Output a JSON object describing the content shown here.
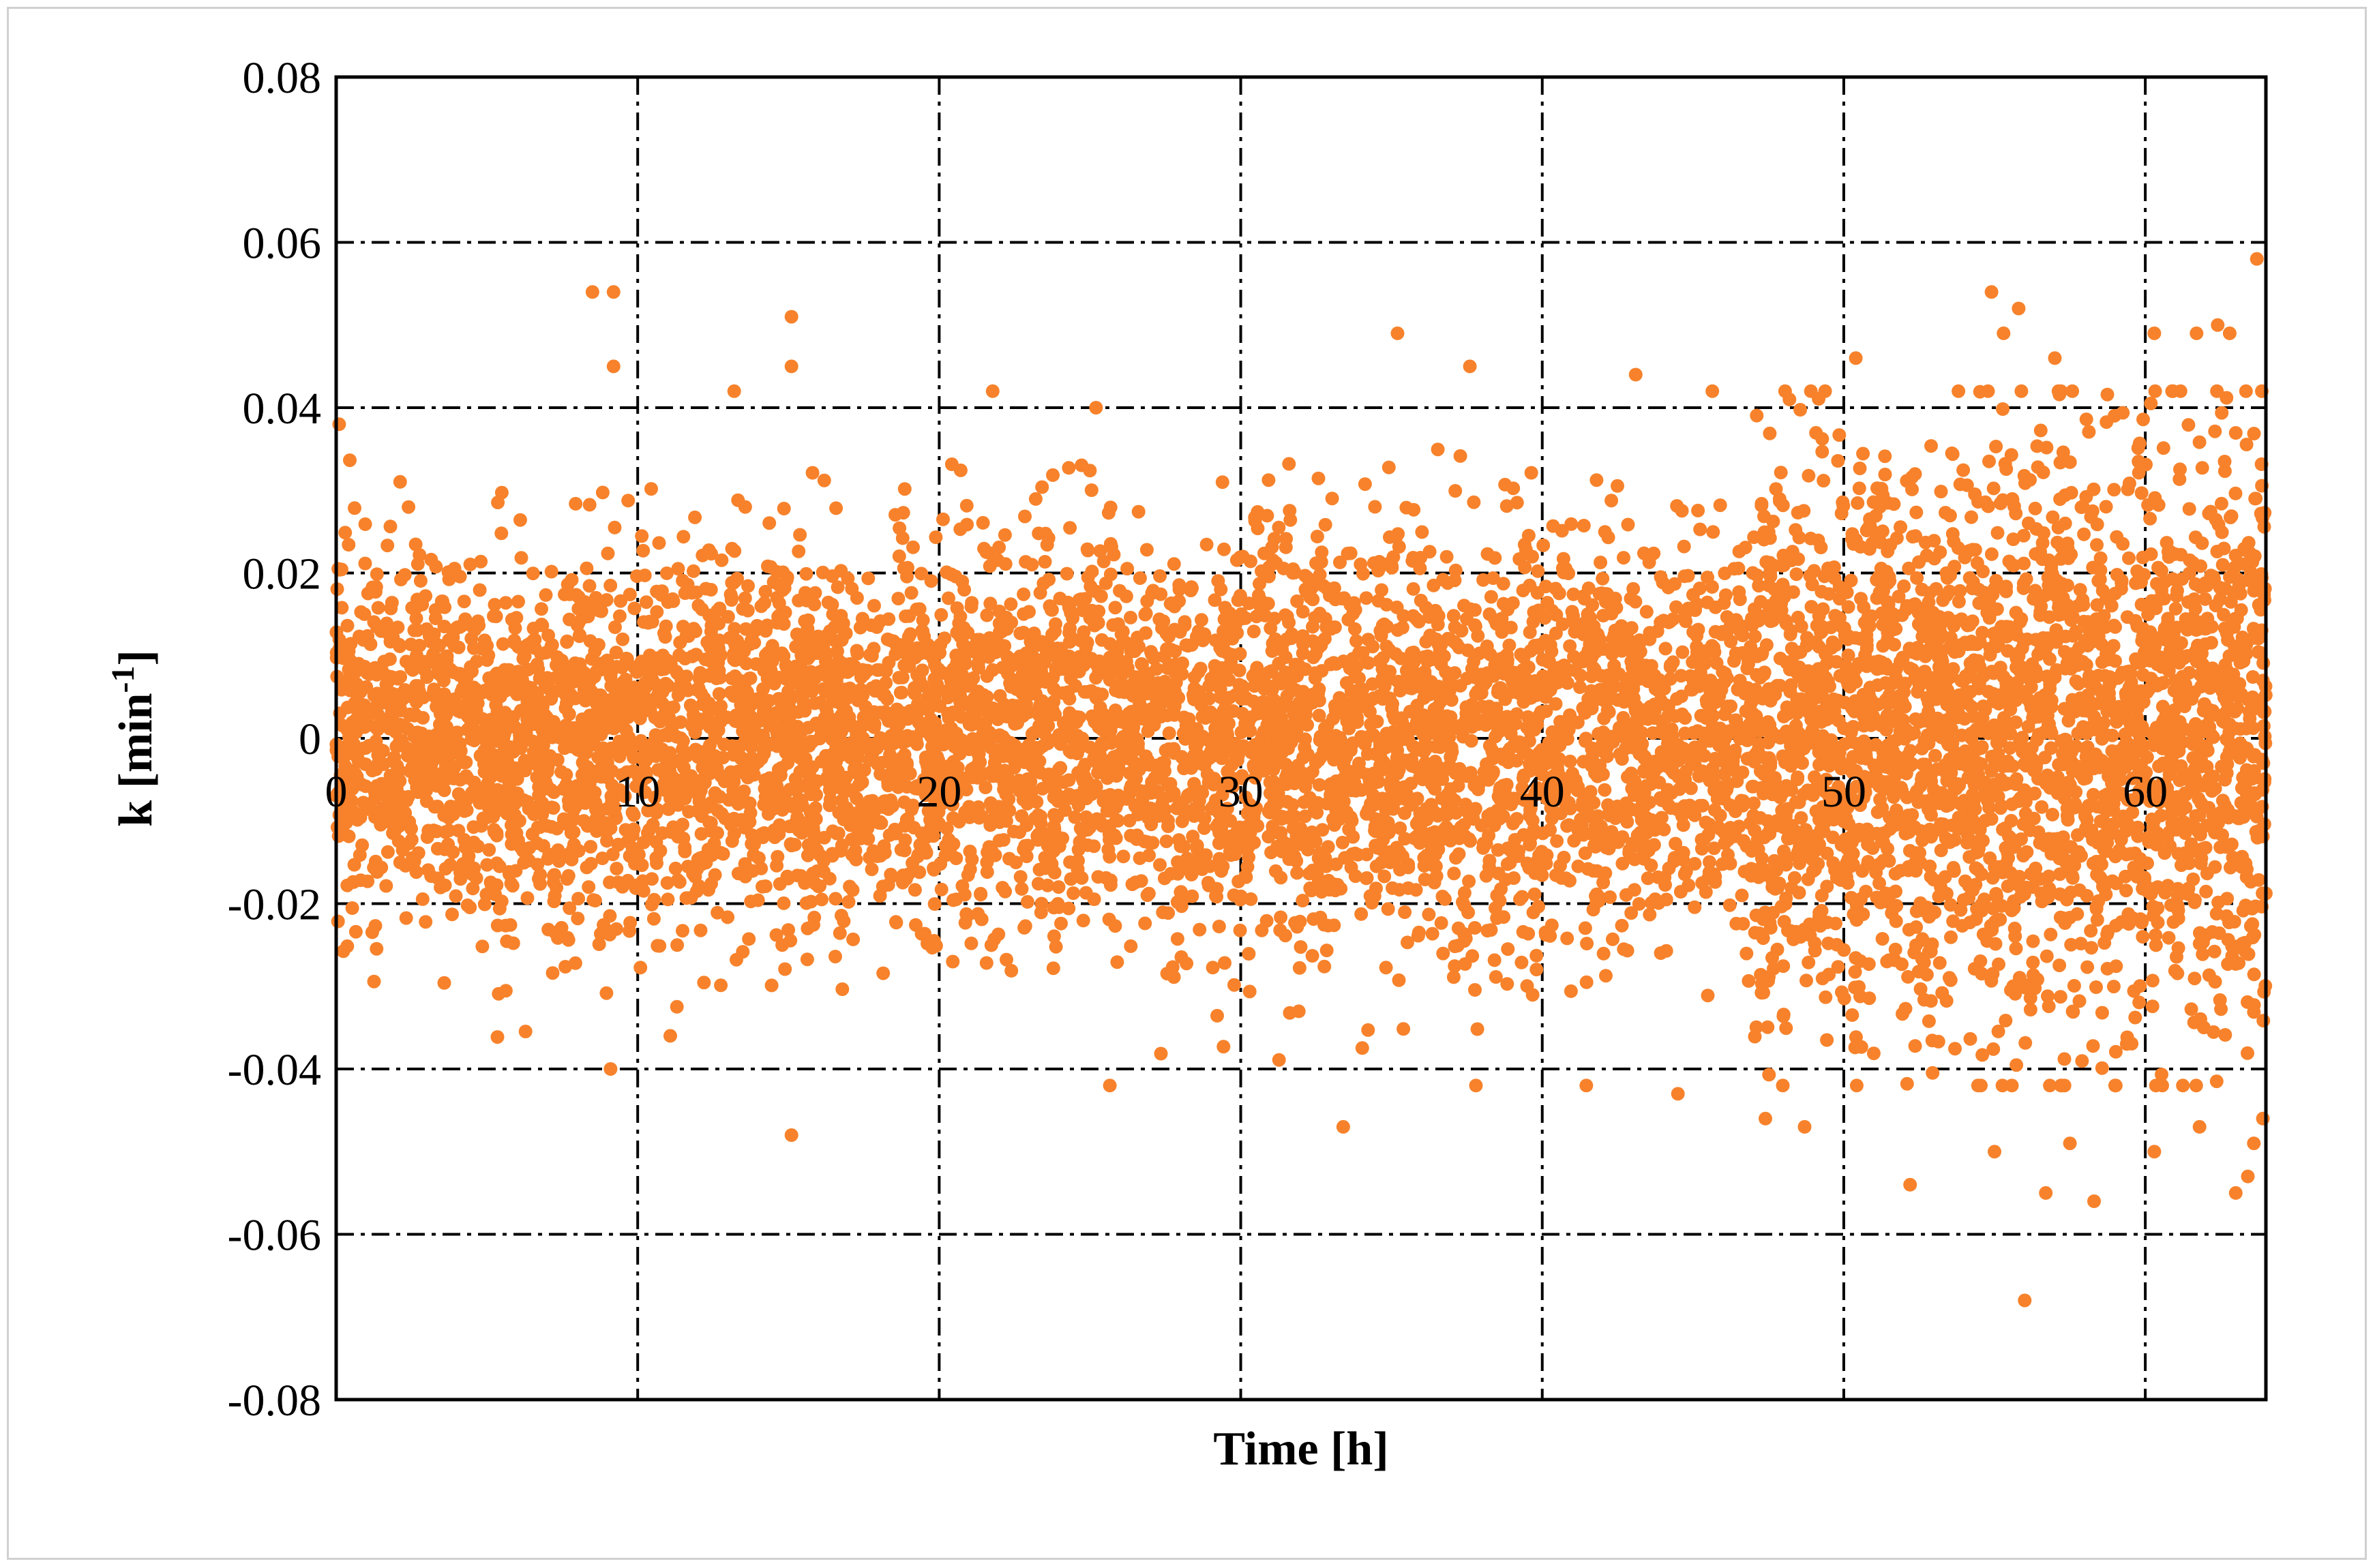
{
  "chart_data": {
    "type": "scatter",
    "xlabel": "Time [h]",
    "ylabel_base": "k [min",
    "ylabel_sup": "-1",
    "ylabel_end": "]",
    "xlim": [
      0,
      64
    ],
    "ylim": [
      -0.08,
      0.08
    ],
    "x_ticks": [
      0,
      10,
      20,
      30,
      40,
      50,
      60
    ],
    "y_ticks": [
      0.08,
      0.06,
      0.04,
      0.02,
      0,
      -0.02,
      -0.04,
      -0.06,
      -0.08
    ],
    "y_tick_labels": [
      "0.08",
      "0.06",
      "0.04",
      "0.02",
      "0",
      "-0.02",
      "-0.04",
      "-0.06",
      "-0.08"
    ],
    "grid": true,
    "grid_style": "dash-dot",
    "marker_color": "#F7822B",
    "series": [
      {
        "points_description": "dense noise band around zero",
        "segments": [
          {
            "x_range": [
              0,
              20
            ],
            "std": 0.011,
            "count": 2400
          },
          {
            "x_range": [
              20,
              47
            ],
            "std": 0.012,
            "count": 3200
          },
          {
            "x_range": [
              47,
              64
            ],
            "std": 0.017,
            "count": 2600
          }
        ],
        "outliers": [
          {
            "x": 0.1,
            "y": 0.038
          },
          {
            "x": 8.5,
            "y": 0.054
          },
          {
            "x": 9.2,
            "y": 0.054
          },
          {
            "x": 9.2,
            "y": 0.045
          },
          {
            "x": 15.1,
            "y": 0.051
          },
          {
            "x": 15.1,
            "y": 0.045
          },
          {
            "x": 13.2,
            "y": 0.042
          },
          {
            "x": 25.2,
            "y": 0.04
          },
          {
            "x": 35.2,
            "y": 0.049
          },
          {
            "x": 37.6,
            "y": 0.045
          },
          {
            "x": 43.1,
            "y": 0.044
          },
          {
            "x": 48.2,
            "y": 0.041
          },
          {
            "x": 50.4,
            "y": 0.046
          },
          {
            "x": 54.9,
            "y": 0.054
          },
          {
            "x": 55.8,
            "y": 0.052
          },
          {
            "x": 55.3,
            "y": 0.049
          },
          {
            "x": 57.0,
            "y": 0.046
          },
          {
            "x": 60.3,
            "y": 0.049
          },
          {
            "x": 61.7,
            "y": 0.049
          },
          {
            "x": 62.4,
            "y": 0.05
          },
          {
            "x": 62.8,
            "y": 0.049
          },
          {
            "x": 63.7,
            "y": 0.058
          },
          {
            "x": 9.1,
            "y": -0.04
          },
          {
            "x": 15.1,
            "y": -0.048
          },
          {
            "x": 33.4,
            "y": -0.047
          },
          {
            "x": 52.2,
            "y": -0.054
          },
          {
            "x": 55.0,
            "y": -0.05
          },
          {
            "x": 56.7,
            "y": -0.055
          },
          {
            "x": 56.0,
            "y": -0.068
          },
          {
            "x": 58.3,
            "y": -0.056
          },
          {
            "x": 60.3,
            "y": -0.05
          },
          {
            "x": 63.0,
            "y": -0.055
          },
          {
            "x": 63.4,
            "y": -0.053
          },
          {
            "x": 63.6,
            "y": -0.049
          },
          {
            "x": 63.9,
            "y": -0.046
          },
          {
            "x": 48.7,
            "y": -0.047
          },
          {
            "x": 47.4,
            "y": -0.046
          },
          {
            "x": 57.5,
            "y": -0.049
          },
          {
            "x": 59.0,
            "y": -0.042
          },
          {
            "x": 61.8,
            "y": -0.047
          },
          {
            "x": 44.5,
            "y": -0.043
          },
          {
            "x": 37.8,
            "y": -0.042
          }
        ]
      }
    ]
  }
}
